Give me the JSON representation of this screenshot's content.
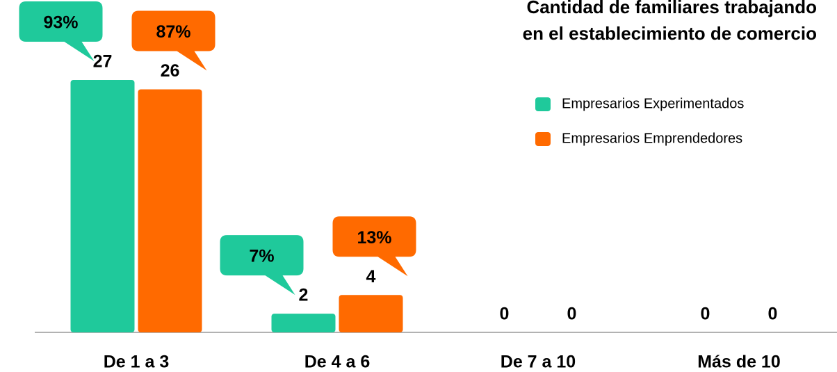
{
  "chart_data": {
    "type": "bar",
    "title": [
      "Cantidad de familiares trabajando",
      "en el establecimiento de comercio"
    ],
    "categories": [
      "De 1 a 3",
      "De 4 a 6",
      "De 7 a 10",
      "Más de 10"
    ],
    "series": [
      {
        "name": "Empresarios Experimentados",
        "color": "#1fc99b",
        "values": [
          27,
          2,
          0,
          0
        ],
        "callouts": [
          "93%",
          "7%",
          null,
          null
        ]
      },
      {
        "name": "Empresarios Emprendedores",
        "color": "#ff6a00",
        "values": [
          26,
          4,
          0,
          0
        ],
        "callouts": [
          "87%",
          "13%",
          null,
          null
        ]
      }
    ],
    "legend": "upper right"
  }
}
